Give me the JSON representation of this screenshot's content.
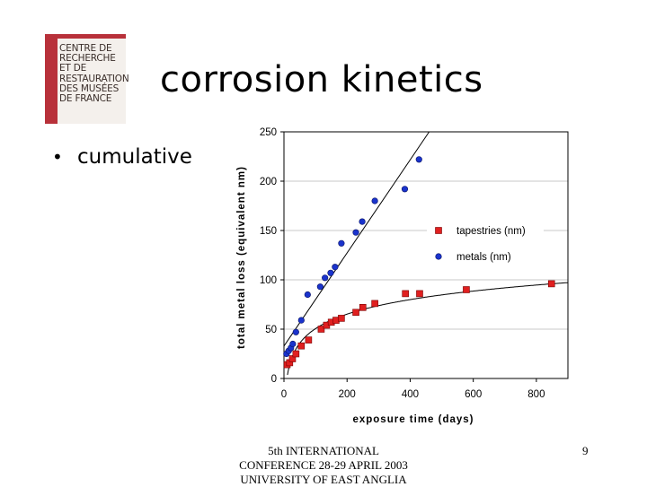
{
  "logo": {
    "lines": [
      "CENTRE DE",
      "RECHERCHE",
      "ET DE",
      "RESTAURATION",
      "DES MUSÉES",
      "DE FRANCE"
    ],
    "accent_color": "#b8313a"
  },
  "slide": {
    "title": "corrosion kinetics",
    "bullet": "cumulative"
  },
  "footer": {
    "line1": "5th INTERNATIONAL",
    "line2": "CONFERENCE 28-29 APRIL 2003",
    "line3": "UNIVERSITY OF EAST ANGLIA"
  },
  "page_number": "9",
  "chart_data": {
    "type": "scatter",
    "xlabel": "exposure time (days)",
    "ylabel": "total metal loss (equivalent nm)",
    "xlim": [
      0,
      900
    ],
    "ylim": [
      0,
      250
    ],
    "x_ticks": [
      "0",
      "200",
      "400",
      "600",
      "800"
    ],
    "y_ticks": [
      "0",
      "50",
      "100",
      "150",
      "200",
      "250"
    ],
    "grid": "horizontal",
    "legend_position": "right",
    "series": [
      {
        "name": "tapestries (nm)",
        "marker": "square",
        "color": "#e02020",
        "x": [
          10,
          18,
          27,
          38,
          55,
          78,
          118,
          135,
          150,
          165,
          182,
          228,
          250,
          288,
          385,
          430,
          578,
          848
        ],
        "y": [
          14,
          16,
          20,
          25,
          33,
          39,
          50,
          54,
          57,
          59,
          61,
          67,
          72,
          76,
          86,
          86,
          90,
          96
        ]
      },
      {
        "name": "metals (nm)",
        "marker": "circle",
        "color": "#1a33cc",
        "x": [
          8,
          15,
          22,
          28,
          38,
          55,
          75,
          115,
          130,
          148,
          162,
          182,
          228,
          248,
          288,
          383,
          428
        ],
        "y": [
          25,
          28,
          31,
          35,
          47,
          59,
          85,
          93,
          102,
          107,
          113,
          137,
          148,
          159,
          180,
          192,
          222
        ]
      }
    ],
    "trendlines": [
      {
        "series": "tapestries (nm)",
        "kind": "logarithmic"
      },
      {
        "series": "metals (nm)",
        "kind": "linear"
      }
    ]
  }
}
